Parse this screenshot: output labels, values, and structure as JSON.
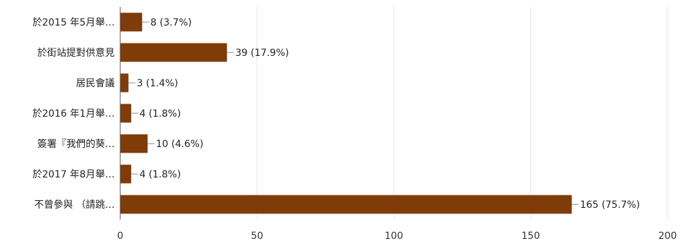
{
  "chart_data": {
    "type": "bar",
    "orientation": "horizontal",
    "categories": [
      "於2015 年5月舉…",
      "於街站提對供意見",
      "居民會議",
      "於2016 年1月舉…",
      "簽署『我們的葵…",
      "於2017 年8月舉…",
      "不曾參與 （請跳…"
    ],
    "values": [
      8,
      39,
      3,
      4,
      10,
      4,
      165
    ],
    "data_labels": [
      "8 (3.7%)",
      "39 (17.9%)",
      "3 (1.4%)",
      "4 (1.8%)",
      "10 (4.6%)",
      "4 (1.8%)",
      "165 (75.7%)"
    ],
    "xlim": [
      0,
      200
    ],
    "x_ticks": [
      0,
      50,
      100,
      150,
      200
    ],
    "grid": "vertical",
    "legend": "none",
    "bar_color": "#7f3b08",
    "grid_color": "#e6e6e6",
    "axis_color": "#555555"
  }
}
